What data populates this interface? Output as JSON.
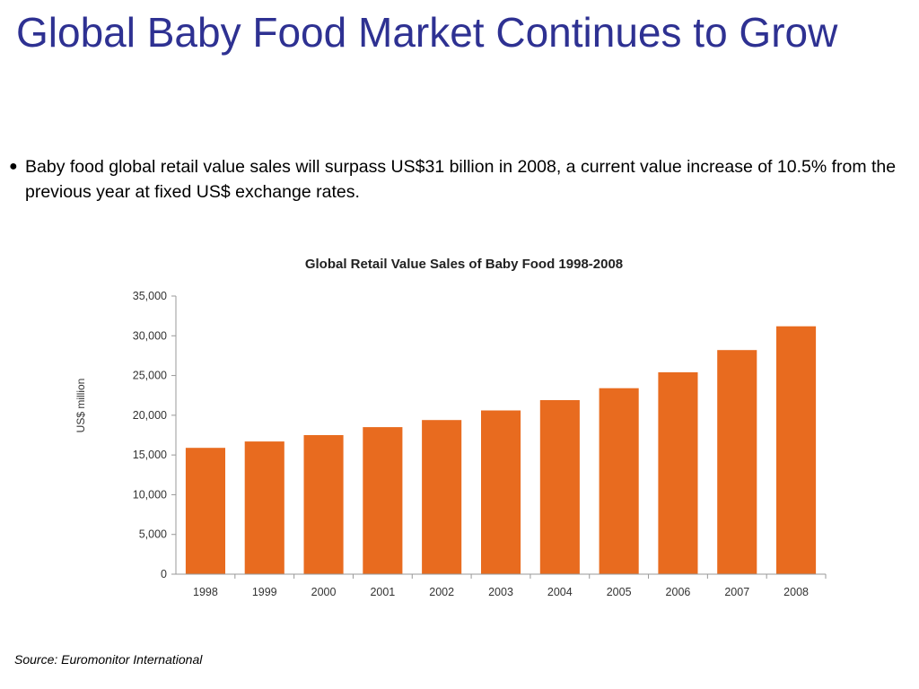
{
  "slide": {
    "title": "Global Baby Food Market Continues to Grow",
    "bullet": "Baby food global retail value sales will surpass US$31 billion in 2008, a current value increase of 10.5% from the previous year at fixed US$ exchange rates.",
    "source": "Source: Euromonitor International"
  },
  "colors": {
    "title": "#2e3192",
    "bar": "#e86b1f"
  },
  "chart_data": {
    "type": "bar",
    "title": "Global Retail Value Sales of Baby Food 1998-2008",
    "xlabel": "",
    "ylabel": "US$ million",
    "categories": [
      "1998",
      "1999",
      "2000",
      "2001",
      "2002",
      "2003",
      "2004",
      "2005",
      "2006",
      "2007",
      "2008"
    ],
    "values": [
      15900,
      16700,
      17500,
      18500,
      19400,
      20600,
      21900,
      23400,
      25400,
      28200,
      31200
    ],
    "ylim": [
      0,
      35000
    ],
    "yticks": [
      "0",
      "5,000",
      "10,000",
      "15,000",
      "20,000",
      "25,000",
      "30,000",
      "35,000"
    ],
    "grid": false,
    "legend": "none"
  }
}
